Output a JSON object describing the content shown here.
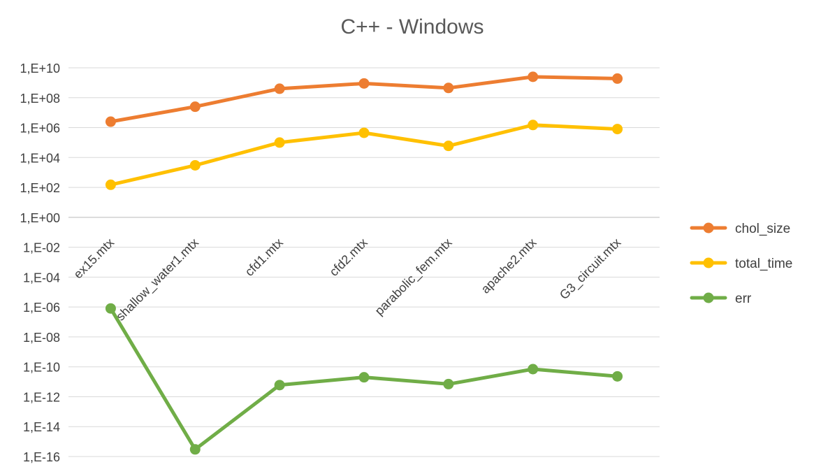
{
  "chart_data": {
    "type": "line",
    "title": "C++ - Windows",
    "xlabel": "",
    "ylabel": "",
    "yscale": "log10",
    "ylim": [
      1e-16,
      10000000000.0
    ],
    "y_ticks": [
      "1,E+10",
      "1,E+08",
      "1,E+06",
      "1,E+04",
      "1,E+02",
      "1,E+00",
      "1,E-02",
      "1,E-04",
      "1,E-06",
      "1,E-08",
      "1,E-10",
      "1,E-12",
      "1,E-14",
      "1,E-16"
    ],
    "grid": true,
    "legend_position": "right",
    "categories": [
      "ex15.mtx",
      "shallow_water1.mtx",
      "cfd1.mtx",
      "cfd2.mtx",
      "parabolic_fem.mtx",
      "apache2.mtx",
      "G3_circuit.mtx"
    ],
    "series": [
      {
        "name": "chol_size",
        "color": "#ED7D31",
        "values": [
          2500000.0,
          25000000.0,
          400000000.0,
          900000000.0,
          450000000.0,
          2500000000.0,
          1900000000.0
        ]
      },
      {
        "name": "total_time",
        "color": "#FFC000",
        "values": [
          150.0,
          3000.0,
          100000.0,
          450000.0,
          60000.0,
          1500000.0,
          800000.0
        ]
      },
      {
        "name": "err",
        "color": "#70AD47",
        "values": [
          8e-07,
          3e-16,
          6e-12,
          2e-11,
          7e-12,
          7e-11,
          2.3e-11
        ]
      }
    ]
  }
}
